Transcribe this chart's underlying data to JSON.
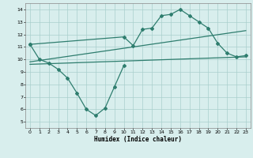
{
  "bg_color": "#d8eeed",
  "line_color": "#2e7d6e",
  "grid_color": "#aacfcc",
  "xlabel": "Humidex (Indice chaleur)",
  "xlim": [
    -0.5,
    23.5
  ],
  "ylim": [
    4.5,
    14.5
  ],
  "xticks": [
    0,
    1,
    2,
    3,
    4,
    5,
    6,
    7,
    8,
    9,
    10,
    11,
    12,
    13,
    14,
    15,
    16,
    17,
    18,
    19,
    20,
    21,
    22,
    23
  ],
  "yticks": [
    5,
    6,
    7,
    8,
    9,
    10,
    11,
    12,
    13,
    14
  ],
  "curve1_x": [
    0,
    1,
    2,
    3,
    4,
    5,
    6,
    7,
    8,
    9,
    10
  ],
  "curve1_y": [
    11.2,
    10.0,
    9.7,
    9.2,
    8.5,
    7.3,
    6.0,
    5.5,
    6.1,
    7.8,
    9.5
  ],
  "curve2_x": [
    0,
    10,
    11,
    12,
    13,
    14,
    15,
    16,
    17,
    18,
    19,
    20,
    21,
    22,
    23
  ],
  "curve2_y": [
    11.2,
    11.8,
    11.1,
    12.4,
    12.5,
    13.5,
    13.6,
    14.0,
    13.5,
    13.0,
    12.5,
    11.3,
    10.5,
    10.2,
    10.3
  ],
  "line3_x": [
    0,
    23
  ],
  "line3_y": [
    9.8,
    12.3
  ],
  "line4_x": [
    0,
    23
  ],
  "line4_y": [
    9.6,
    10.2
  ]
}
